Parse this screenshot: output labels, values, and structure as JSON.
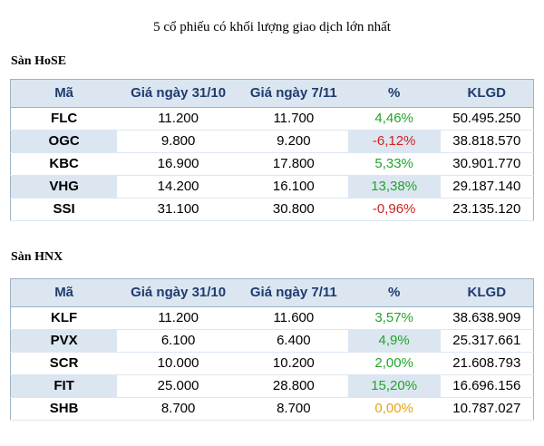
{
  "title": "5 cổ phiếu có khối lượng giao dịch lớn nhất",
  "headers": [
    "Mã",
    "Giá ngày 31/10",
    "Giá ngày 7/11",
    "%",
    "KLGD"
  ],
  "colors": {
    "up": "#22a52a",
    "down": "#d0211f",
    "flat": "#e6a316",
    "header_text": "#1f3c6e",
    "shade": "#dbe6f1"
  },
  "hose": {
    "label": "Sàn HoSE",
    "rows": [
      {
        "code": "FLC",
        "p1": "11.200",
        "p2": "11.700",
        "pct": "4,46%",
        "dir": "up",
        "vol": "50.495.250"
      },
      {
        "code": "OGC",
        "p1": "9.800",
        "p2": "9.200",
        "pct": "-6,12%",
        "dir": "down",
        "vol": "38.818.570"
      },
      {
        "code": "KBC",
        "p1": "16.900",
        "p2": "17.800",
        "pct": "5,33%",
        "dir": "up",
        "vol": "30.901.770"
      },
      {
        "code": "VHG",
        "p1": "14.200",
        "p2": "16.100",
        "pct": "13,38%",
        "dir": "up",
        "vol": "29.187.140"
      },
      {
        "code": "SSI",
        "p1": "31.100",
        "p2": "30.800",
        "pct": "-0,96%",
        "dir": "down",
        "vol": "23.135.120"
      }
    ]
  },
  "hnx": {
    "label": "Sàn HNX",
    "rows": [
      {
        "code": "KLF",
        "p1": "11.200",
        "p2": "11.600",
        "pct": "3,57%",
        "dir": "up",
        "vol": "38.638.909"
      },
      {
        "code": "PVX",
        "p1": "6.100",
        "p2": "6.400",
        "pct": "4,9%",
        "dir": "up",
        "vol": "25.317.661"
      },
      {
        "code": "SCR",
        "p1": "10.000",
        "p2": "10.200",
        "pct": "2,00%",
        "dir": "up",
        "vol": "21.608.793"
      },
      {
        "code": "FIT",
        "p1": "25.000",
        "p2": "28.800",
        "pct": "15,20%",
        "dir": "up",
        "vol": "16.696.156"
      },
      {
        "code": "SHB",
        "p1": "8.700",
        "p2": "8.700",
        "pct": "0,00%",
        "dir": "flat",
        "vol": "10.787.027"
      }
    ]
  }
}
